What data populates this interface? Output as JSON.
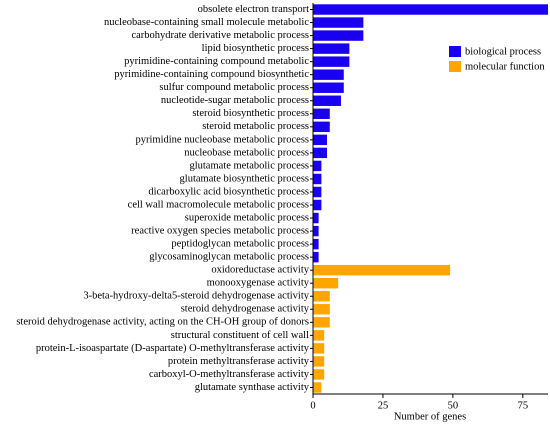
{
  "chart_data": {
    "type": "bar",
    "orientation": "horizontal",
    "categories": [
      "obsolete electron transport",
      "nucleobase-containing small molecule metabolic",
      "carbohydrate derivative metabolic process",
      "lipid biosynthetic process",
      "pyrimidine-containing compound metabolic",
      "pyrimidine-containing compound biosynthetic",
      "sulfur compound metabolic process",
      "nucleotide-sugar metabolic process",
      "steroid biosynthetic process",
      "steroid metabolic process",
      "pyrimidine nucleobase metabolic process",
      "nucleobase metabolic process",
      "glutamate metabolic process",
      "glutamate biosynthetic process",
      "dicarboxylic acid biosynthetic process",
      "cell wall macromolecule metabolic process",
      "superoxide metabolic process",
      "reactive oxygen species metabolic process",
      "peptidoglycan metabolic process",
      "glycosaminoglycan metabolic process",
      "oxidoreductase activity",
      "monooxygenase activity",
      "3-beta-hydroxy-delta5-steroid dehydrogenase activity",
      "steroid dehydrogenase activity",
      "steroid dehydrogenase activity, acting on the CH-OH group of donors",
      "structural constituent of cell wall",
      "protein-L-isoaspartate (D-aspartate) O-methyltransferase activity",
      "protein methyltransferase activity",
      "carboxyl-O-methyltransferase activity",
      "glutamate synthase activity"
    ],
    "series": [
      {
        "name": "biological process",
        "color": "#1a00f0",
        "values": [
          84,
          18,
          18,
          13,
          13,
          11,
          11,
          10,
          6,
          6,
          5,
          5,
          3,
          3,
          3,
          3,
          2,
          2,
          2,
          2,
          null,
          null,
          null,
          null,
          null,
          null,
          null,
          null,
          null,
          null
        ]
      },
      {
        "name": "molecular function",
        "color": "#ffa500",
        "values": [
          null,
          null,
          null,
          null,
          null,
          null,
          null,
          null,
          null,
          null,
          null,
          null,
          null,
          null,
          null,
          null,
          null,
          null,
          null,
          null,
          49,
          9,
          6,
          6,
          6,
          4,
          4,
          4,
          4,
          3
        ]
      }
    ],
    "xlabel": "Number of genes",
    "xlim": [
      0,
      84
    ],
    "xticks": [
      0,
      25,
      50,
      75
    ],
    "legend": "upper right"
  }
}
